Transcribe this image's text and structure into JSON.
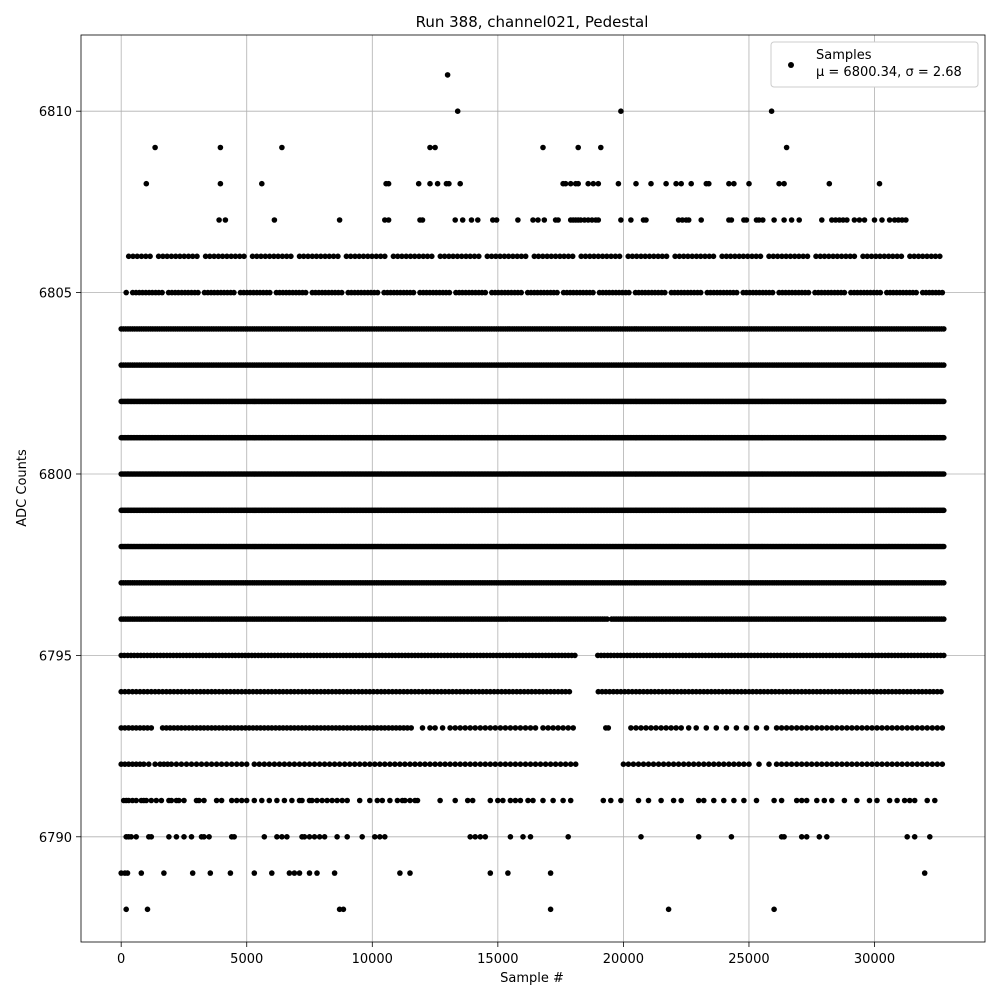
{
  "chart_data": {
    "type": "scatter",
    "title": "Run 388, channel021, Pedestal",
    "xlabel": "Sample #",
    "ylabel": "ADC Counts",
    "xlim": [
      -1600,
      34400
    ],
    "ylim": [
      6787.1,
      6812.1
    ],
    "xticks": [
      0,
      5000,
      10000,
      15000,
      20000,
      25000,
      30000
    ],
    "xtick_labels": [
      "0",
      "5000",
      "10000",
      "15000",
      "20000",
      "25000",
      "30000"
    ],
    "yticks": [
      6790,
      6795,
      6800,
      6805,
      6810
    ],
    "ytick_labels": [
      "6790",
      "6795",
      "6800",
      "6805",
      "6810"
    ],
    "grid": true,
    "legend": {
      "position": "top-right",
      "series_label": "Samples",
      "stats_label": "μ = 6800.34, σ = 2.68"
    },
    "marker_color": "#000000",
    "series": [
      {
        "name": "Samples",
        "mean": 6800.34,
        "std": 2.68,
        "n_samples": 32768,
        "sample_range": [
          0,
          32767
        ],
        "levels": [
          {
            "y": 6788,
            "x": [
              200,
              1050,
              8700,
              8850,
              17100,
              21800,
              26000
            ]
          },
          {
            "y": 6789,
            "x": [
              0,
              150,
              250,
              800,
              1700,
              2850,
              3550,
              4350,
              5300,
              6000,
              6700,
              6900,
              7100,
              7500,
              7800,
              8500,
              11100,
              11500,
              14700,
              15400,
              17100,
              32000
            ]
          },
          {
            "y": 6790,
            "x": [
              200,
              300,
              400,
              600,
              1100,
              1200,
              1900,
              2200,
              2500,
              2800,
              3200,
              3300,
              3500,
              4400,
              4500,
              5700,
              6200,
              6400,
              6600,
              7200,
              7300,
              7500,
              7700,
              7900,
              8100,
              8600,
              9000,
              9600,
              10100,
              10300,
              10500,
              13900,
              14100,
              14300,
              14500,
              15500,
              16000,
              16300,
              17800,
              20700,
              23000,
              24300,
              26300,
              26400,
              27100,
              27300,
              27800,
              28100,
              31300,
              31600,
              32200
            ]
          },
          {
            "y": 6791,
            "x": [
              100,
              200,
              300,
              450,
              600,
              800,
              900,
              1000,
              1200,
              1400,
              1600,
              1900,
              2000,
              2200,
              2300,
              2500,
              3000,
              3100,
              3300,
              3800,
              4000,
              4400,
              4600,
              4800,
              5000,
              5300,
              5600,
              5900,
              6200,
              6500,
              6800,
              7100,
              7200,
              7500,
              7600,
              7800,
              8000,
              8200,
              8400,
              8600,
              8800,
              9000,
              9500,
              9900,
              10200,
              10400,
              10700,
              11000,
              11200,
              11300,
              11500,
              11700,
              11800,
              12700,
              13300,
              13800,
              14000,
              14700,
              15000,
              15200,
              15500,
              15700,
              15900,
              16200,
              16400,
              16800,
              17200,
              17600,
              17900,
              19200,
              19500,
              19900,
              20600,
              21000,
              21500,
              22000,
              22300,
              23000,
              23200,
              23600,
              24000,
              24400,
              24800,
              25300,
              26000,
              26300,
              26900,
              27100,
              27300,
              27700,
              28000,
              28300,
              28800,
              29300,
              29800,
              30100,
              30600,
              30900,
              31200,
              31400,
              31600,
              32100,
              32400
            ]
          },
          {
            "y": 6792,
            "x": [
              0,
              150,
              300,
              450,
              600,
              750,
              900,
              1100,
              1350,
              1550,
              1700,
              1850,
              2000,
              2200,
              2400,
              2600,
              2800,
              3000,
              3200,
              3400,
              3600,
              3800,
              4000,
              4200,
              4400,
              4600,
              4800,
              5000,
              5300,
              5500,
              5700,
              5900,
              6100,
              6300,
              6500,
              6700,
              6900,
              7100,
              7300,
              7500,
              7700,
              7900,
              8100,
              8300,
              8500,
              8700,
              8900,
              9100,
              9300,
              9500,
              9700,
              9900,
              10100,
              10300,
              10500,
              10700,
              10900,
              11100,
              11300,
              11500,
              11700,
              11900,
              12100,
              12300,
              12500,
              12700,
              12900,
              13100,
              13300,
              13500,
              13700,
              13900,
              14100,
              14300,
              14500,
              14700,
              14900,
              15100,
              15300,
              15500,
              15700,
              15900,
              16100,
              16300,
              16500,
              16700,
              16900,
              17100,
              17300,
              17500,
              17700,
              17900,
              18100,
              20000,
              20200,
              20400,
              20600,
              20800,
              21000,
              21200,
              21400,
              21600,
              21800,
              22000,
              22200,
              22400,
              22600,
              22800,
              23000,
              23200,
              23400,
              23600,
              23800,
              24000,
              24200,
              24400,
              24600,
              24800,
              25000,
              25400,
              25800,
              26100,
              26300,
              26500,
              26700,
              26900,
              27100,
              27300,
              27500,
              27700,
              27900,
              28100,
              28300,
              28500,
              28700,
              28900,
              29100,
              29300,
              29500,
              29700,
              29900,
              30100,
              30300,
              30500,
              30700,
              30900,
              31100,
              31300,
              31500,
              31700,
              31900,
              32100,
              32300,
              32500,
              32700
            ]
          },
          {
            "y": 6793,
            "x": [
              0,
              150,
              300,
              450,
              600,
              750,
              900,
              1050,
              1200,
              1650,
              1800,
              1950,
              2100,
              2250,
              2400,
              2550,
              2700,
              2850,
              3000,
              3150,
              3300,
              3450,
              3600,
              3750,
              3900,
              4050,
              4200,
              4350,
              4500,
              4650,
              4800,
              4950,
              5100,
              5250,
              5400,
              5550,
              5700,
              5850,
              6000,
              6150,
              6300,
              6450,
              6600,
              6750,
              6900,
              7050,
              7200,
              7350,
              7500,
              7650,
              7800,
              7950,
              8100,
              8250,
              8400,
              8550,
              8700,
              8850,
              9000,
              9150,
              9300,
              9450,
              9600,
              9750,
              9900,
              10050,
              10200,
              10350,
              10500,
              10650,
              10800,
              10950,
              11100,
              11250,
              11400,
              11550,
              12000,
              12300,
              12500,
              12800,
              13100,
              13300,
              13500,
              13700,
              13900,
              14100,
              14300,
              14500,
              14700,
              14900,
              15100,
              15300,
              15500,
              15700,
              15900,
              16100,
              16300,
              16500,
              16800,
              17000,
              17200,
              17400,
              17600,
              17800,
              18000,
              19300,
              19400,
              20300,
              20500,
              20700,
              20900,
              21100,
              21300,
              21500,
              21700,
              21900,
              22100,
              22300,
              22600,
              22900,
              23300,
              23700,
              24100,
              24500,
              24900,
              25300,
              25700,
              26100,
              26300,
              26500,
              26700,
              26900,
              27100,
              27300,
              27500,
              27700,
              27900,
              28100,
              28300,
              28500,
              28700,
              28900,
              29100,
              29300,
              29500,
              29700,
              29900,
              30100,
              30300,
              30500,
              30700,
              30900,
              31100,
              31300,
              31500,
              31700,
              31900,
              32100,
              32300,
              32500,
              32700
            ]
          },
          {
            "y": 6794,
            "x": [
              0,
              150,
              300,
              450,
              600,
              750,
              900,
              1050,
              1200,
              1350,
              1500,
              1650,
              1800,
              1950,
              2100,
              2250,
              2400,
              2550,
              2700,
              2850,
              3000,
              3150,
              3300,
              3450,
              3600,
              3750,
              3900,
              4050,
              4200,
              4350,
              4500,
              4650,
              4800,
              4950,
              5100,
              5250,
              5400,
              5550,
              5700,
              5850,
              6000,
              6150,
              6300,
              6450,
              6600,
              6750,
              6900,
              7050,
              7200,
              7350,
              7500,
              7650,
              7800,
              7950,
              8100,
              8250,
              8400,
              8550,
              8700,
              8850,
              9000,
              9150,
              9300,
              9450,
              9600,
              9750,
              9900,
              10050,
              10200,
              10350,
              10500,
              10650,
              10800,
              10950,
              11100,
              11250,
              11400,
              11550,
              11700,
              11850,
              12000,
              12150,
              12300,
              12450,
              12600,
              12750,
              12900,
              13050,
              13200,
              13350,
              13500,
              13650,
              13800,
              13950,
              14100,
              14250,
              14400,
              14550,
              14700,
              14850,
              15000,
              15150,
              15300,
              15450,
              15600,
              15750,
              15900,
              16050,
              16200,
              16350,
              16500,
              16650,
              16800,
              16950,
              17100,
              17250,
              17400,
              17550,
              17700,
              17850,
              19000,
              19150,
              19300,
              19450,
              19600,
              19750,
              19900,
              20050,
              20200,
              20350,
              20500,
              20650,
              20800,
              20950,
              21100,
              21250,
              21400,
              21550,
              21700,
              21850,
              22000,
              22150,
              22300,
              22450,
              22600,
              22750,
              22900,
              23050,
              23200,
              23350,
              23500,
              23650,
              23800,
              23950,
              24100,
              24250,
              24400,
              24550,
              24700,
              24850,
              25000,
              25150,
              25300,
              25450,
              25600,
              25750,
              25900,
              26050,
              26200,
              26350,
              26500,
              26650,
              26800,
              26950,
              27100,
              27250,
              27400,
              27550,
              27700,
              27850,
              28000,
              28150,
              28300,
              28450,
              28600,
              28750,
              28900,
              29050,
              29200,
              29350,
              29500,
              29650,
              29800,
              29950,
              30100,
              30250,
              30400,
              30550,
              30700,
              30850,
              31000,
              31150,
              31300,
              31450,
              31600,
              31750,
              31900,
              32050,
              32200,
              32350,
              32500,
              32650
            ]
          }
        ],
        "upper_outliers": [
          {
            "y": 6806,
            "x": []
          },
          {
            "y": 6807,
            "x": [
              3900,
              4150,
              6100,
              8700,
              10500,
              10650,
              11900,
              12000,
              13300,
              13600,
              13950,
              14200,
              14800,
              14950,
              15800,
              16400,
              16600,
              16850,
              17300,
              17400,
              17900,
              18000,
              18100,
              18200,
              18300,
              18450,
              18600,
              18750,
              18900,
              19000,
              19900,
              20300,
              20800,
              20900,
              22200,
              22350,
              22500,
              22600,
              23100,
              24200,
              24300,
              24800,
              24900,
              25300,
              25400,
              25550,
              26000,
              26400,
              26700,
              27000,
              27900,
              28300,
              28450,
              28600,
              28750,
              28900,
              29200,
              29400,
              29600,
              30000,
              30300,
              30600,
              30800,
              30950,
              31100,
              31250
            ]
          },
          {
            "y": 6808,
            "x": [
              1000,
              3950,
              5600,
              10550,
              10650,
              11850,
              12300,
              12600,
              12950,
              13050,
              13500,
              17600,
              17700,
              17900,
              18100,
              18200,
              18600,
              18800,
              19000,
              19800,
              20500,
              21100,
              21700,
              22100,
              22300,
              22700,
              23300,
              23400,
              24200,
              24400,
              25000,
              26200,
              26400,
              28200,
              30200
            ]
          },
          {
            "y": 6809,
            "x": [
              1350,
              3950,
              6400,
              12300,
              12500,
              16800,
              18200,
              19100,
              26500
            ]
          },
          {
            "y": 6810,
            "x": [
              13400,
              19900,
              25900
            ]
          },
          {
            "y": 6811,
            "x": [
              13000
            ]
          }
        ]
      }
    ]
  }
}
